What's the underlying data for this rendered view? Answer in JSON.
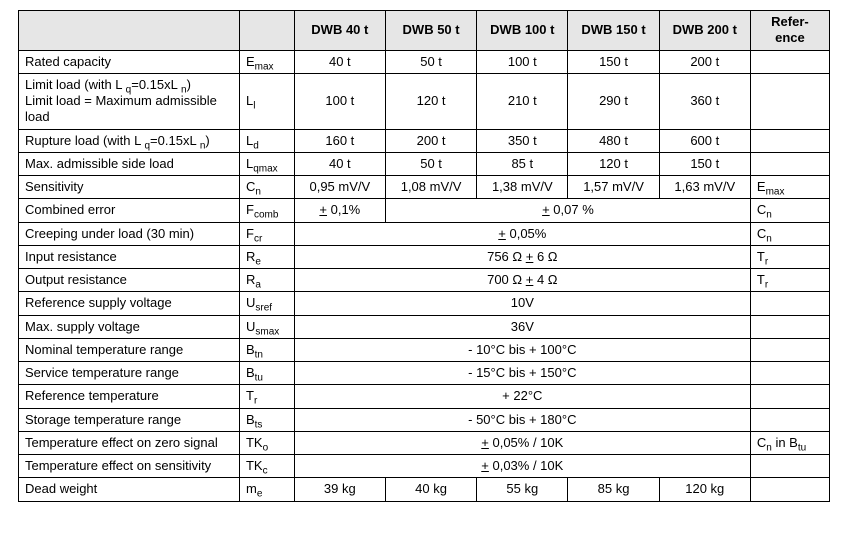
{
  "table": {
    "headers": {
      "blank1": "",
      "blank2": "",
      "c1": "DWB 40 t",
      "c2": "DWB 50 t",
      "c3": "DWB 100 t",
      "c4": "DWB 150 t",
      "c5": "DWB 200 t",
      "ref_line1": "Refer-",
      "ref_line2": "ence"
    },
    "rows": {
      "r1": {
        "param": "Rated capacity",
        "sym_pre": "E",
        "sym_sub": "max",
        "v1": "40 t",
        "v2": "50 t",
        "v3": "100 t",
        "v4": "150 t",
        "v5": "200 t",
        "ref": ""
      },
      "r2": {
        "param_l1_a": "Limit load (with L ",
        "param_l1_sub": "q",
        "param_l1_b": "=0.15xL ",
        "param_l1_sub2": "n",
        "param_l1_c": ")",
        "param_l2": "Limit load = Maximum admissible load",
        "sym_pre": "L",
        "sym_sub": "l",
        "v1": "100 t",
        "v2": "120 t",
        "v3": "210 t",
        "v4": "290 t",
        "v5": "360 t",
        "ref": ""
      },
      "r3": {
        "param_a": "Rupture load (with L ",
        "param_sub": "q",
        "param_b": "=0.15xL ",
        "param_sub2": "n",
        "param_c": ")",
        "sym_pre": "L",
        "sym_sub": "d",
        "v1": "160 t",
        "v2": "200 t",
        "v3": "350 t",
        "v4": "480 t",
        "v5": "600 t",
        "ref": ""
      },
      "r4": {
        "param": "Max. admissible side load",
        "sym_pre": "L",
        "sym_sub": "qmax",
        "v1": "40 t",
        "v2": "50 t",
        "v3": "85 t",
        "v4": "120 t",
        "v5": "150 t",
        "ref": ""
      },
      "r5": {
        "param": "Sensitivity",
        "sym_pre": "C",
        "sym_sub": "n",
        "v1": "0,95 mV/V",
        "v2": "1,08 mV/V",
        "v3": "1,38 mV/V",
        "v4": "1,57 mV/V",
        "v5": "1,63 mV/V",
        "ref_pre": "E",
        "ref_sub": "max"
      },
      "r6": {
        "param": "Combined error",
        "sym_pre": "F",
        "sym_sub": "comb",
        "v1_pm": "+",
        "v1_rest": " 0,1%",
        "merged_pm": "+",
        "merged_rest": " 0,07 %",
        "ref_pre": "C",
        "ref_sub": "n"
      },
      "r7": {
        "param": "Creeping under load (30 min)",
        "sym_pre": "F",
        "sym_sub": "cr",
        "merged_pm": "+",
        "merged_rest": " 0,05%",
        "ref_pre": "C",
        "ref_sub": "n"
      },
      "r8": {
        "param": "Input resistance",
        "sym_pre": "R",
        "sym_sub": "e",
        "merged_a": "756 Ω ",
        "merged_pm": "+",
        "merged_b": " 6 Ω",
        "ref_pre": "T",
        "ref_sub": "r"
      },
      "r9": {
        "param": "Output resistance",
        "sym_pre": "R",
        "sym_sub": "a",
        "merged_a": "700 Ω ",
        "merged_pm": "+",
        "merged_b": " 4 Ω",
        "ref_pre": "T",
        "ref_sub": "r"
      },
      "r10": {
        "param": "Reference supply voltage",
        "sym_pre": "U",
        "sym_sub": "sref",
        "merged": "10V",
        "ref": ""
      },
      "r11": {
        "param": "Max. supply voltage",
        "sym_pre": "U",
        "sym_sub": "smax",
        "merged": "36V",
        "ref": ""
      },
      "r12": {
        "param": "Nominal temperature range",
        "sym_pre": "B",
        "sym_sub": "tn",
        "merged": "- 10°C bis + 100°C",
        "ref": ""
      },
      "r13": {
        "param": "Service temperature range",
        "sym_pre": "B",
        "sym_sub": "tu",
        "merged": "- 15°C bis + 150°C",
        "ref": ""
      },
      "r14": {
        "param": "Reference temperature",
        "sym_pre": "T",
        "sym_sub": "r",
        "merged": "+ 22°C",
        "ref": ""
      },
      "r15": {
        "param": "Storage temperature range",
        "sym_pre": "B",
        "sym_sub": "ts",
        "merged": "- 50°C bis + 180°C",
        "ref": ""
      },
      "r16": {
        "param": "Temperature effect on zero signal",
        "sym_pre": "TK",
        "sym_sub": "o",
        "merged_pm": "+",
        "merged_rest": " 0,05% / 10K",
        "ref_pre": "C",
        "ref_sub": "n",
        "ref_mid": " in B",
        "ref_sub2": "tu"
      },
      "r17": {
        "param": "Temperature effect on sensitivity",
        "sym_pre": "TK",
        "sym_sub": "c",
        "merged_pm": "+",
        "merged_rest": " 0,03% / 10K",
        "ref": ""
      },
      "r18": {
        "param": "Dead weight",
        "sym_pre": "m",
        "sym_sub": "e",
        "v1": "39 kg",
        "v2": "40 kg",
        "v3": "55 kg",
        "v4": "85 kg",
        "v5": "120 kg",
        "ref": ""
      }
    }
  }
}
